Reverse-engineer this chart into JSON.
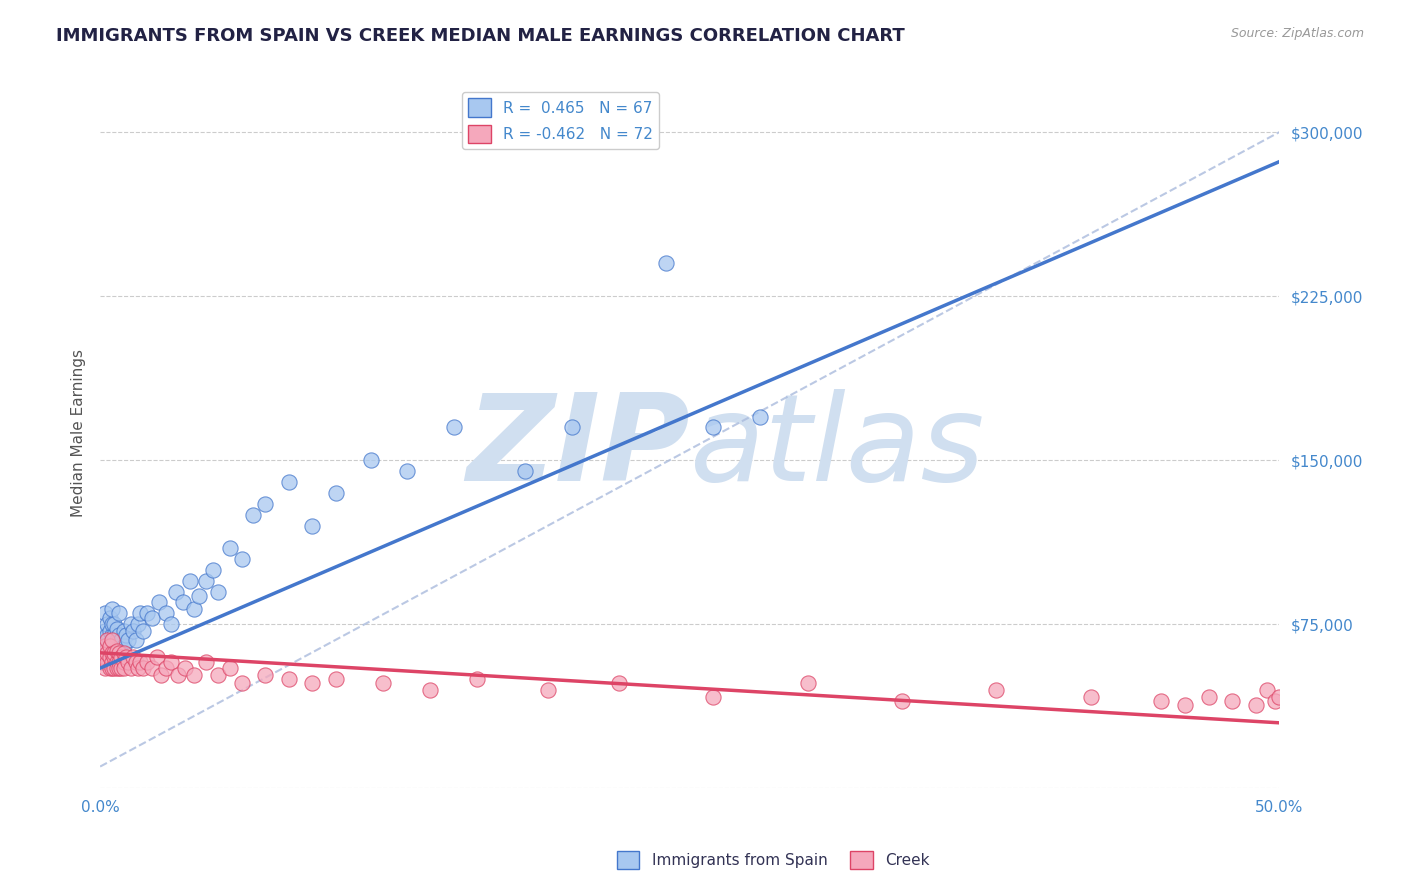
{
  "title": "IMMIGRANTS FROM SPAIN VS CREEK MEDIAN MALE EARNINGS CORRELATION CHART",
  "source": "Source: ZipAtlas.com",
  "ylabel": "Median Male Earnings",
  "xlim": [
    0.0,
    0.5
  ],
  "ylim": [
    0,
    325000
  ],
  "xticks": [
    0.0,
    0.05,
    0.1,
    0.15,
    0.2,
    0.25,
    0.3,
    0.35,
    0.4,
    0.45,
    0.5
  ],
  "xtick_labels": [
    "0.0%",
    "",
    "",
    "",
    "",
    "",
    "",
    "",
    "",
    "",
    "50.0%"
  ],
  "yticks": [
    0,
    75000,
    150000,
    225000,
    300000
  ],
  "ytick_labels": [
    "",
    "$75,000",
    "$150,000",
    "$225,000",
    "$300,000"
  ],
  "legend1_label": "R =  0.465   N = 67",
  "legend2_label": "R = -0.462   N = 72",
  "series1_color": "#a8c8f0",
  "series2_color": "#f5a8bc",
  "trend1_color": "#4477cc",
  "trend2_color": "#dd4466",
  "dashed_line_color": "#aabbdd",
  "watermark_color": "#d0dff0",
  "background_color": "#ffffff",
  "grid_color": "#cccccc",
  "title_color": "#222244",
  "tick_color": "#4488cc",
  "series1_x": [
    0.001,
    0.002,
    0.002,
    0.002,
    0.003,
    0.003,
    0.003,
    0.004,
    0.004,
    0.004,
    0.004,
    0.005,
    0.005,
    0.005,
    0.005,
    0.005,
    0.006,
    0.006,
    0.006,
    0.006,
    0.007,
    0.007,
    0.007,
    0.007,
    0.008,
    0.008,
    0.008,
    0.009,
    0.009,
    0.01,
    0.01,
    0.011,
    0.012,
    0.013,
    0.014,
    0.015,
    0.016,
    0.017,
    0.018,
    0.02,
    0.022,
    0.025,
    0.028,
    0.03,
    0.032,
    0.035,
    0.038,
    0.04,
    0.042,
    0.045,
    0.048,
    0.05,
    0.055,
    0.06,
    0.065,
    0.07,
    0.08,
    0.09,
    0.1,
    0.115,
    0.13,
    0.15,
    0.18,
    0.2,
    0.24,
    0.26,
    0.28
  ],
  "series1_y": [
    62000,
    68000,
    72000,
    80000,
    65000,
    70000,
    75000,
    58000,
    65000,
    72000,
    78000,
    60000,
    65000,
    70000,
    75000,
    82000,
    62000,
    66000,
    70000,
    75000,
    60000,
    65000,
    68000,
    73000,
    65000,
    70000,
    80000,
    62000,
    68000,
    65000,
    72000,
    70000,
    68000,
    75000,
    72000,
    68000,
    75000,
    80000,
    72000,
    80000,
    78000,
    85000,
    80000,
    75000,
    90000,
    85000,
    95000,
    82000,
    88000,
    95000,
    100000,
    90000,
    110000,
    105000,
    125000,
    130000,
    140000,
    120000,
    135000,
    150000,
    145000,
    165000,
    145000,
    165000,
    240000,
    165000,
    170000
  ],
  "series2_x": [
    0.001,
    0.001,
    0.002,
    0.002,
    0.002,
    0.003,
    0.003,
    0.003,
    0.004,
    0.004,
    0.004,
    0.005,
    0.005,
    0.005,
    0.005,
    0.006,
    0.006,
    0.006,
    0.007,
    0.007,
    0.007,
    0.008,
    0.008,
    0.008,
    0.009,
    0.009,
    0.01,
    0.01,
    0.01,
    0.011,
    0.012,
    0.013,
    0.014,
    0.015,
    0.016,
    0.017,
    0.018,
    0.02,
    0.022,
    0.024,
    0.026,
    0.028,
    0.03,
    0.033,
    0.036,
    0.04,
    0.045,
    0.05,
    0.055,
    0.06,
    0.07,
    0.08,
    0.09,
    0.1,
    0.12,
    0.14,
    0.16,
    0.19,
    0.22,
    0.26,
    0.3,
    0.34,
    0.38,
    0.42,
    0.45,
    0.46,
    0.47,
    0.48,
    0.49,
    0.495,
    0.498,
    0.5
  ],
  "series2_y": [
    58000,
    62000,
    55000,
    60000,
    65000,
    58000,
    62000,
    68000,
    55000,
    60000,
    65000,
    58000,
    62000,
    55000,
    68000,
    60000,
    55000,
    62000,
    58000,
    63000,
    55000,
    62000,
    58000,
    55000,
    60000,
    55000,
    62000,
    58000,
    55000,
    60000,
    58000,
    55000,
    60000,
    58000,
    55000,
    58000,
    55000,
    58000,
    55000,
    60000,
    52000,
    55000,
    58000,
    52000,
    55000,
    52000,
    58000,
    52000,
    55000,
    48000,
    52000,
    50000,
    48000,
    50000,
    48000,
    45000,
    50000,
    45000,
    48000,
    42000,
    48000,
    40000,
    45000,
    42000,
    40000,
    38000,
    42000,
    40000,
    38000,
    45000,
    40000,
    42000
  ]
}
